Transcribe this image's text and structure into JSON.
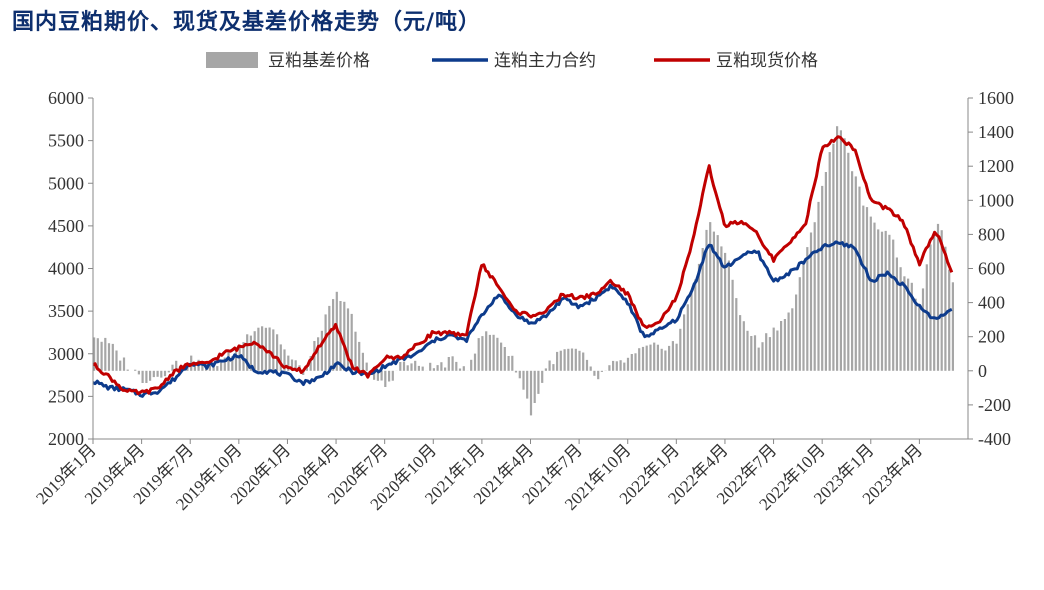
{
  "title": "国内豆粕期价、现货及基差价格走势（元/吨）",
  "chart_data": {
    "type": "line",
    "title": "国内豆粕期价、现货及基差价格走势（元/吨）",
    "legend_position": "top",
    "grid": false,
    "y_left": {
      "min": 2000,
      "max": 6000,
      "step": 500,
      "ticks": [
        "2000",
        "2500",
        "3000",
        "3500",
        "4000",
        "4500",
        "5000",
        "5500",
        "6000"
      ]
    },
    "y_right": {
      "min": -400,
      "max": 1600,
      "step": 200,
      "ticks": [
        "-400",
        "-200",
        "0",
        "200",
        "400",
        "600",
        "800",
        "1000",
        "1200",
        "1400",
        "1600"
      ]
    },
    "x_ticks": [
      "2019年1月",
      "2019年4月",
      "2019年7月",
      "2019年10月",
      "2020年1月",
      "2020年4月",
      "2020年7月",
      "2020年10月",
      "2021年1月",
      "2021年4月",
      "2021年7月",
      "2021年10月",
      "2022年1月",
      "2022年4月",
      "2022年7月",
      "2022年10月",
      "2023年1月",
      "2023年4月"
    ],
    "x_start": "2019-01",
    "series": [
      {
        "name": "豆粕基差价格",
        "kind": "bar",
        "axis": "right",
        "color": "#a6a6a6",
        "points": [
          [
            "2019-01",
            210
          ],
          [
            "2019-02",
            150
          ],
          [
            "2019-03",
            40
          ],
          [
            "2019-04",
            -50
          ],
          [
            "2019-05",
            -30
          ],
          [
            "2019-06",
            40
          ],
          [
            "2019-07",
            60
          ],
          [
            "2019-08",
            30
          ],
          [
            "2019-09",
            60
          ],
          [
            "2019-10",
            150
          ],
          [
            "2019-11",
            270
          ],
          [
            "2019-12",
            260
          ],
          [
            "2020-01",
            80
          ],
          [
            "2020-02",
            -10
          ],
          [
            "2020-03",
            250
          ],
          [
            "2020-04",
            450
          ],
          [
            "2020-05",
            300
          ],
          [
            "2020-06",
            -30
          ],
          [
            "2020-07",
            -90
          ],
          [
            "2020-08",
            50
          ],
          [
            "2020-09",
            30
          ],
          [
            "2020-10",
            20
          ],
          [
            "2020-11",
            60
          ],
          [
            "2020-12",
            20
          ],
          [
            "2021-01",
            220
          ],
          [
            "2021-02",
            200
          ],
          [
            "2021-03",
            30
          ],
          [
            "2021-04",
            -250
          ],
          [
            "2021-05",
            40
          ],
          [
            "2021-06",
            120
          ],
          [
            "2021-07",
            110
          ],
          [
            "2021-08",
            -50
          ],
          [
            "2021-09",
            30
          ],
          [
            "2021-10",
            70
          ],
          [
            "2021-11",
            130
          ],
          [
            "2021-12",
            140
          ],
          [
            "2022-01",
            170
          ],
          [
            "2022-02",
            520
          ],
          [
            "2022-03",
            870
          ],
          [
            "2022-04",
            700
          ],
          [
            "2022-05",
            280
          ],
          [
            "2022-06",
            160
          ],
          [
            "2022-07",
            250
          ],
          [
            "2022-08",
            340
          ],
          [
            "2022-09",
            700
          ],
          [
            "2022-10",
            1120
          ],
          [
            "2022-11",
            1470
          ],
          [
            "2022-12",
            1120
          ],
          [
            "2023-01",
            860
          ],
          [
            "2023-02",
            830
          ],
          [
            "2023-03",
            570
          ],
          [
            "2023-04",
            390
          ],
          [
            "2023-05",
            920
          ],
          [
            "2023-06",
            520
          ],
          [
            "2023-07",
            300
          ]
        ]
      },
      {
        "name": "连粕主力合约",
        "kind": "line",
        "axis": "left",
        "color": "#0d3b8c",
        "points": [
          [
            "2019-01",
            2680
          ],
          [
            "2019-02",
            2600
          ],
          [
            "2019-03",
            2580
          ],
          [
            "2019-04",
            2520
          ],
          [
            "2019-05",
            2560
          ],
          [
            "2019-06",
            2700
          ],
          [
            "2019-07",
            2900
          ],
          [
            "2019-08",
            2850
          ],
          [
            "2019-09",
            2920
          ],
          [
            "2019-10",
            2980
          ],
          [
            "2019-11",
            2800
          ],
          [
            "2019-12",
            2790
          ],
          [
            "2020-01",
            2750
          ],
          [
            "2020-02",
            2660
          ],
          [
            "2020-03",
            2720
          ],
          [
            "2020-04",
            2880
          ],
          [
            "2020-05",
            2790
          ],
          [
            "2020-06",
            2750
          ],
          [
            "2020-07",
            2850
          ],
          [
            "2020-08",
            2930
          ],
          [
            "2020-09",
            3000
          ],
          [
            "2020-10",
            3150
          ],
          [
            "2020-11",
            3220
          ],
          [
            "2020-12",
            3150
          ],
          [
            "2021-01",
            3450
          ],
          [
            "2021-02",
            3700
          ],
          [
            "2021-03",
            3480
          ],
          [
            "2021-04",
            3350
          ],
          [
            "2021-05",
            3450
          ],
          [
            "2021-06",
            3650
          ],
          [
            "2021-07",
            3550
          ],
          [
            "2021-08",
            3650
          ],
          [
            "2021-09",
            3800
          ],
          [
            "2021-10",
            3600
          ],
          [
            "2021-11",
            3200
          ],
          [
            "2021-12",
            3280
          ],
          [
            "2022-01",
            3400
          ],
          [
            "2022-02",
            3750
          ],
          [
            "2022-03",
            4300
          ],
          [
            "2022-04",
            4000
          ],
          [
            "2022-05",
            4150
          ],
          [
            "2022-06",
            4200
          ],
          [
            "2022-07",
            3850
          ],
          [
            "2022-08",
            3950
          ],
          [
            "2022-09",
            4100
          ],
          [
            "2022-10",
            4250
          ],
          [
            "2022-11",
            4300
          ],
          [
            "2022-12",
            4250
          ],
          [
            "2023-01",
            3850
          ],
          [
            "2023-02",
            3950
          ],
          [
            "2023-03",
            3800
          ],
          [
            "2023-04",
            3550
          ],
          [
            "2023-05",
            3400
          ],
          [
            "2023-06",
            3520
          ],
          [
            "2023-07",
            3820
          ]
        ]
      },
      {
        "name": "豆粕现货价格",
        "kind": "line",
        "axis": "left",
        "color": "#c00000",
        "points": [
          [
            "2019-01",
            2880
          ],
          [
            "2019-02",
            2730
          ],
          [
            "2019-03",
            2560
          ],
          [
            "2019-04",
            2540
          ],
          [
            "2019-05",
            2590
          ],
          [
            "2019-06",
            2790
          ],
          [
            "2019-07",
            2880
          ],
          [
            "2019-08",
            2880
          ],
          [
            "2019-09",
            3000
          ],
          [
            "2019-10",
            3070
          ],
          [
            "2019-11",
            3150
          ],
          [
            "2019-12",
            3000
          ],
          [
            "2020-01",
            2820
          ],
          [
            "2020-02",
            2800
          ],
          [
            "2020-03",
            3100
          ],
          [
            "2020-04",
            3330
          ],
          [
            "2020-05",
            2850
          ],
          [
            "2020-06",
            2740
          ],
          [
            "2020-07",
            2950
          ],
          [
            "2020-08",
            2960
          ],
          [
            "2020-09",
            3100
          ],
          [
            "2020-10",
            3250
          ],
          [
            "2020-11",
            3240
          ],
          [
            "2020-12",
            3200
          ],
          [
            "2021-01",
            4050
          ],
          [
            "2021-02",
            3800
          ],
          [
            "2021-03",
            3500
          ],
          [
            "2021-04",
            3450
          ],
          [
            "2021-05",
            3500
          ],
          [
            "2021-06",
            3700
          ],
          [
            "2021-07",
            3650
          ],
          [
            "2021-08",
            3700
          ],
          [
            "2021-09",
            3850
          ],
          [
            "2021-10",
            3700
          ],
          [
            "2021-11",
            3300
          ],
          [
            "2021-12",
            3400
          ],
          [
            "2022-01",
            3650
          ],
          [
            "2022-02",
            4300
          ],
          [
            "2022-03",
            5200
          ],
          [
            "2022-04",
            4500
          ],
          [
            "2022-05",
            4550
          ],
          [
            "2022-06",
            4400
          ],
          [
            "2022-07",
            4100
          ],
          [
            "2022-08",
            4300
          ],
          [
            "2022-09",
            4550
          ],
          [
            "2022-10",
            5400
          ],
          [
            "2022-11",
            5550
          ],
          [
            "2022-12",
            5400
          ],
          [
            "2023-01",
            4800
          ],
          [
            "2023-02",
            4700
          ],
          [
            "2023-03",
            4550
          ],
          [
            "2023-04",
            4050
          ],
          [
            "2023-05",
            4450
          ],
          [
            "2023-06",
            3950
          ],
          [
            "2023-07",
            4050
          ]
        ]
      }
    ]
  }
}
